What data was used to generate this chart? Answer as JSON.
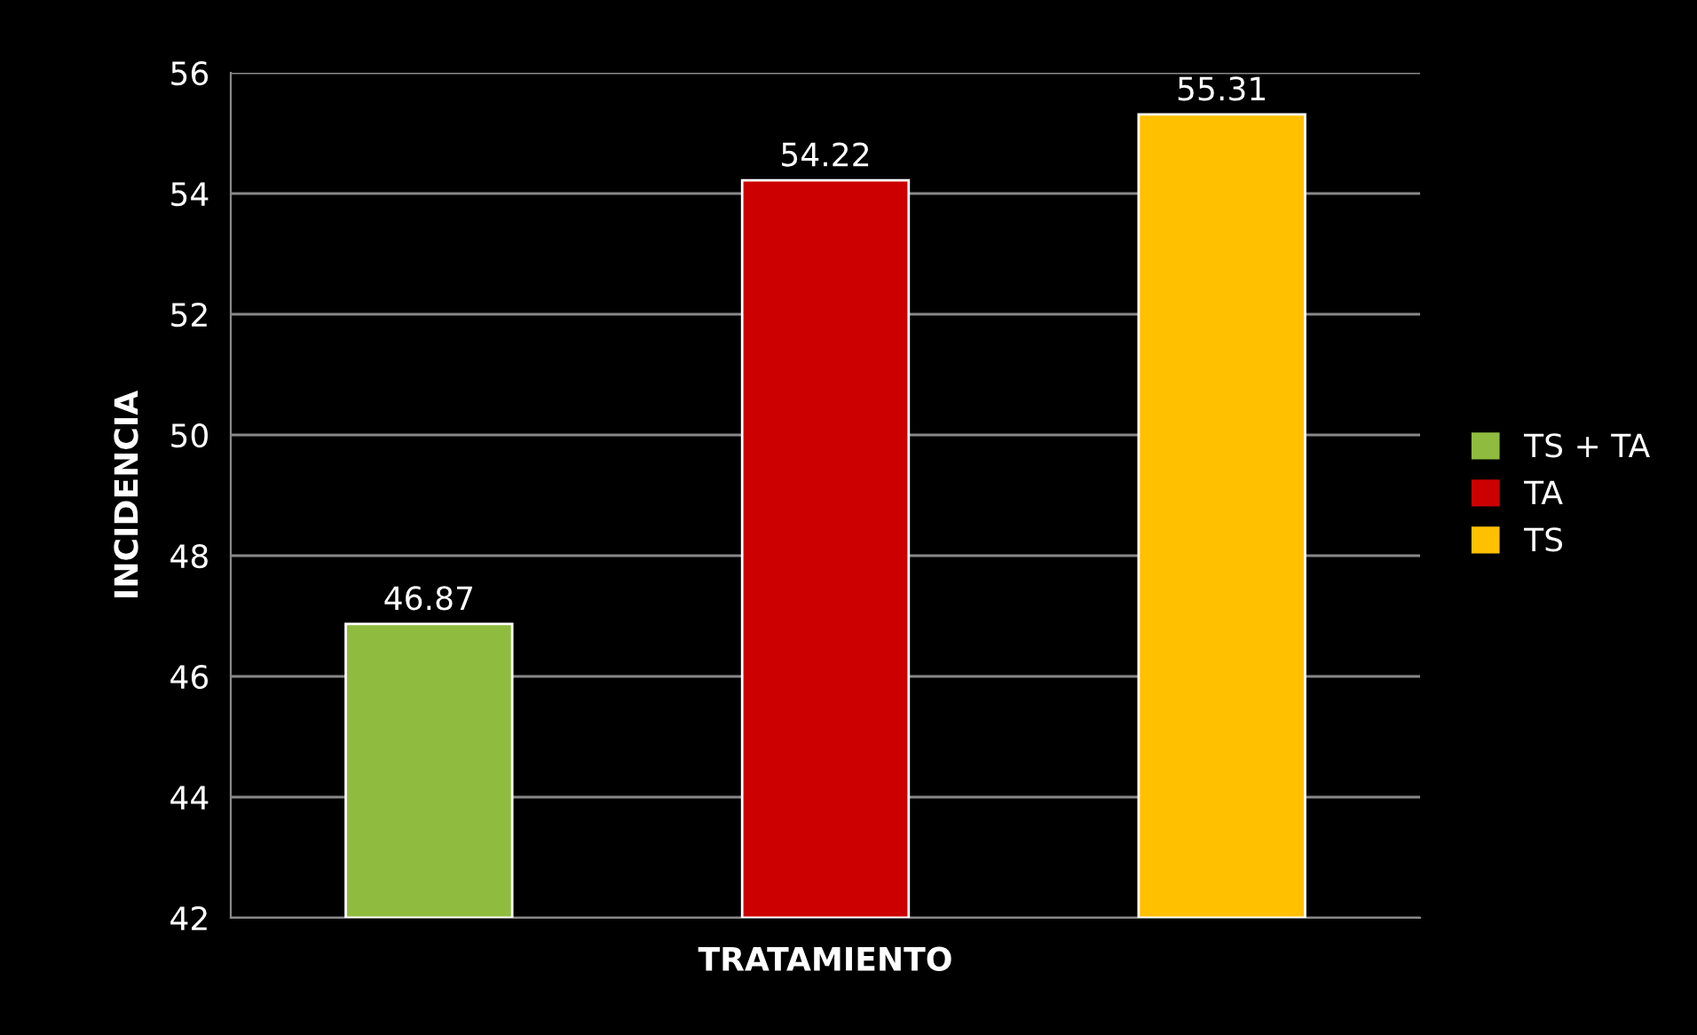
{
  "chart_data": {
    "type": "bar",
    "xlabel": "TRATAMIENTO",
    "ylabel": "INCIDENCIA",
    "categories": [
      null
    ],
    "series": [
      {
        "name": "TS + TA",
        "color": "#8fbc3f",
        "values": [
          46.87
        ]
      },
      {
        "name": "TA",
        "color": "#cc0000",
        "values": [
          54.22
        ]
      },
      {
        "name": "TS",
        "color": "#ffc000",
        "values": [
          55.31
        ]
      }
    ],
    "ylim": [
      42,
      56
    ],
    "yticks": [
      42,
      44,
      46,
      48,
      50,
      52,
      54,
      56
    ],
    "grid": "y",
    "legend": "right",
    "data_labels": true
  }
}
